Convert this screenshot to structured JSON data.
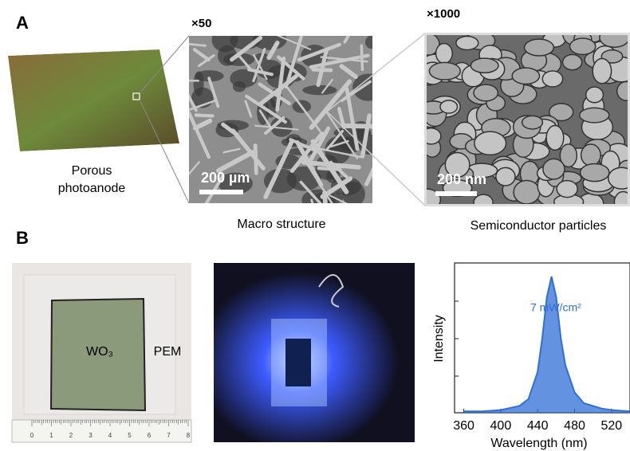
{
  "panel_a": {
    "label": "A",
    "magnification_1": "×50",
    "magnification_2": "×1000",
    "sample_label": [
      "Porous",
      "photoanode"
    ],
    "scale_bar_1": "200 µm",
    "scale_bar_2": "200 nm",
    "caption_1": "Macro structure",
    "caption_2": "Semiconductor particles"
  },
  "panel_b": {
    "label": "B",
    "film_label": "WO₃",
    "membrane_label": "PEM",
    "ruler_labels": [
      "0",
      "1",
      "2",
      "3",
      "4",
      "5",
      "6",
      "7",
      "8"
    ]
  },
  "chart_data": {
    "type": "area",
    "x_label": "Wavelength (nm)",
    "y_label": "Intensity",
    "annotation": "7 mW/cm²",
    "x": [
      360,
      380,
      400,
      420,
      430,
      440,
      445,
      450,
      455,
      460,
      465,
      470,
      480,
      490,
      500,
      510,
      520,
      540
    ],
    "values": [
      0.01,
      0.01,
      0.02,
      0.05,
      0.1,
      0.3,
      0.55,
      0.85,
      1.0,
      0.85,
      0.55,
      0.35,
      0.15,
      0.07,
      0.05,
      0.03,
      0.02,
      0.01
    ],
    "color": "#2f6fd6",
    "xlim": [
      350,
      540
    ],
    "ylim": [
      0,
      1.1
    ],
    "xticks": [
      360,
      400,
      440,
      480,
      520
    ]
  }
}
